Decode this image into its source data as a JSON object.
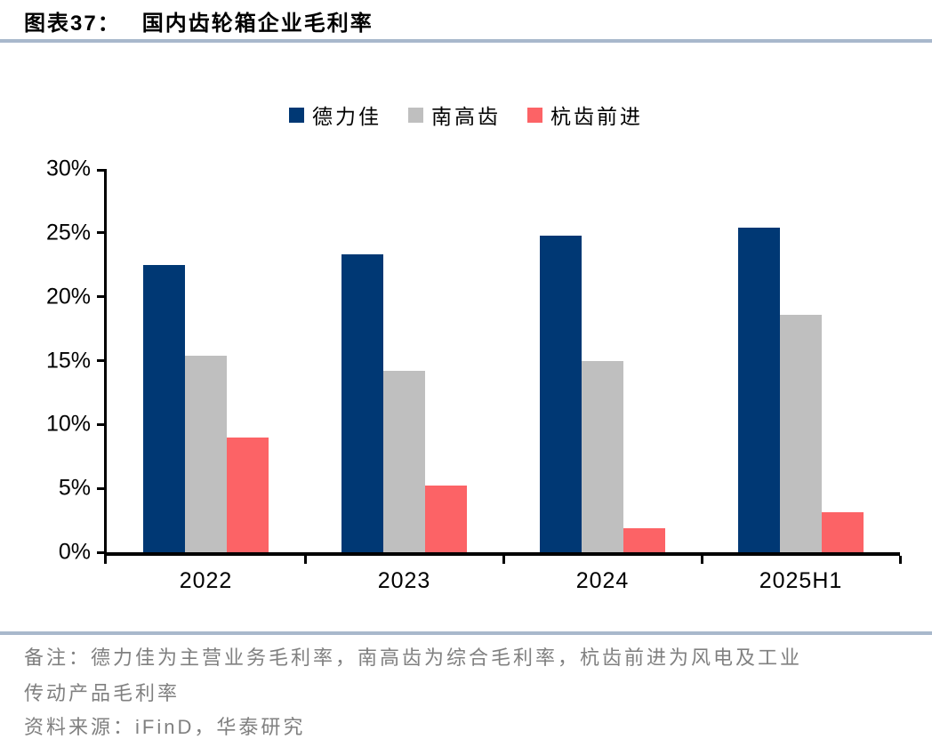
{
  "figure": {
    "label": "图表37：",
    "title": "国内齿轮箱企业毛利率"
  },
  "chart_data": {
    "type": "bar",
    "title": "国内齿轮箱企业毛利率",
    "categories": [
      "2022",
      "2023",
      "2024",
      "2025H1"
    ],
    "series": [
      {
        "name": "德力佳",
        "color": "#003874",
        "values": [
          22.5,
          23.3,
          24.8,
          25.4
        ]
      },
      {
        "name": "南高齿",
        "color": "#bfbfbf",
        "values": [
          15.4,
          14.2,
          15.0,
          18.6
        ]
      },
      {
        "name": "杭齿前进",
        "color": "#fc6366",
        "values": [
          9.0,
          5.2,
          1.9,
          3.1
        ]
      }
    ],
    "xlabel": "",
    "ylabel": "",
    "ylim": [
      0,
      30
    ],
    "yticks": [
      0,
      5,
      10,
      15,
      20,
      25,
      30
    ],
    "ytick_suffix": "%",
    "legend_position": "top",
    "grid": false
  },
  "footer": {
    "note_line1": "备注：德力佳为主营业务毛利率，南高齿为综合毛利率，杭齿前进为风电及工业",
    "note_line2": "传动产品毛利率",
    "source": "资料来源：iFinD，华泰研究"
  },
  "colors": {
    "rule": "#a8b8cc",
    "axis": "#000000",
    "note_text": "#808080",
    "title_text": "#000000"
  }
}
